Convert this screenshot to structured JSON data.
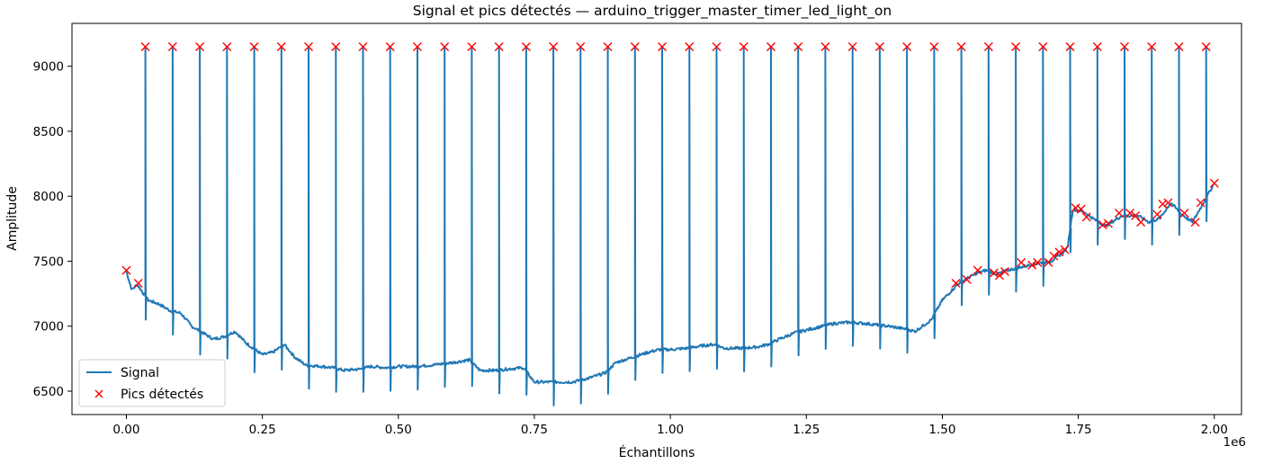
{
  "chart_data": {
    "type": "line",
    "title": "Signal et pics détectés — arduino_trigger_master_timer_led_light_on",
    "xlabel": "Échantillons",
    "ylabel": "Amplitude",
    "x_offset_label": "1e6",
    "xlim": [
      -0.1,
      2.05
    ],
    "ylim": [
      6320,
      9330
    ],
    "x_scale": 1000000,
    "x_ticks": [
      0.0,
      0.25,
      0.5,
      0.75,
      1.0,
      1.25,
      1.5,
      1.75,
      2.0
    ],
    "x_tick_labels": [
      "0.00",
      "0.25",
      "0.50",
      "0.75",
      "1.00",
      "1.25",
      "1.50",
      "1.75",
      "2.00"
    ],
    "y_ticks": [
      6500,
      7000,
      7500,
      8000,
      8500,
      9000
    ],
    "y_tick_labels": [
      "6500",
      "7000",
      "7500",
      "8000",
      "8500",
      "9000"
    ],
    "grid": false,
    "legend": {
      "position": "lower-left",
      "entries": [
        "Signal",
        "Pics détectés"
      ]
    },
    "series": [
      {
        "name": "Signal",
        "kind": "line",
        "color": "#1f77b4",
        "baseline": [
          [
            0.0,
            7420
          ],
          [
            0.01,
            7280
          ],
          [
            0.02,
            7320
          ],
          [
            0.04,
            7200
          ],
          [
            0.06,
            7170
          ],
          [
            0.08,
            7120
          ],
          [
            0.1,
            7100
          ],
          [
            0.12,
            7000
          ],
          [
            0.14,
            6950
          ],
          [
            0.16,
            6900
          ],
          [
            0.18,
            6920
          ],
          [
            0.2,
            6960
          ],
          [
            0.22,
            6870
          ],
          [
            0.25,
            6780
          ],
          [
            0.27,
            6800
          ],
          [
            0.29,
            6860
          ],
          [
            0.31,
            6760
          ],
          [
            0.33,
            6700
          ],
          [
            0.36,
            6690
          ],
          [
            0.38,
            6680
          ],
          [
            0.4,
            6660
          ],
          [
            0.43,
            6670
          ],
          [
            0.45,
            6690
          ],
          [
            0.48,
            6680
          ],
          [
            0.5,
            6690
          ],
          [
            0.53,
            6690
          ],
          [
            0.56,
            6700
          ],
          [
            0.58,
            6710
          ],
          [
            0.6,
            6720
          ],
          [
            0.63,
            6740
          ],
          [
            0.65,
            6660
          ],
          [
            0.68,
            6660
          ],
          [
            0.7,
            6670
          ],
          [
            0.73,
            6680
          ],
          [
            0.75,
            6570
          ],
          [
            0.78,
            6570
          ],
          [
            0.82,
            6570
          ],
          [
            0.85,
            6600
          ],
          [
            0.88,
            6640
          ],
          [
            0.9,
            6720
          ],
          [
            0.93,
            6760
          ],
          [
            0.96,
            6800
          ],
          [
            0.98,
            6820
          ],
          [
            1.0,
            6820
          ],
          [
            1.03,
            6830
          ],
          [
            1.06,
            6850
          ],
          [
            1.08,
            6860
          ],
          [
            1.1,
            6830
          ],
          [
            1.13,
            6830
          ],
          [
            1.16,
            6840
          ],
          [
            1.18,
            6860
          ],
          [
            1.2,
            6900
          ],
          [
            1.23,
            6950
          ],
          [
            1.26,
            6980
          ],
          [
            1.28,
            7000
          ],
          [
            1.3,
            7020
          ],
          [
            1.33,
            7030
          ],
          [
            1.36,
            7020
          ],
          [
            1.38,
            7010
          ],
          [
            1.4,
            7000
          ],
          [
            1.43,
            6980
          ],
          [
            1.45,
            6960
          ],
          [
            1.48,
            7050
          ],
          [
            1.5,
            7200
          ],
          [
            1.53,
            7330
          ],
          [
            1.56,
            7400
          ],
          [
            1.58,
            7430
          ],
          [
            1.6,
            7400
          ],
          [
            1.62,
            7430
          ],
          [
            1.65,
            7460
          ],
          [
            1.67,
            7480
          ],
          [
            1.7,
            7500
          ],
          [
            1.72,
            7560
          ],
          [
            1.73,
            7600
          ],
          [
            1.74,
            7900
          ],
          [
            1.76,
            7880
          ],
          [
            1.78,
            7820
          ],
          [
            1.8,
            7770
          ],
          [
            1.83,
            7850
          ],
          [
            1.86,
            7850
          ],
          [
            1.88,
            7800
          ],
          [
            1.9,
            7830
          ],
          [
            1.92,
            7950
          ],
          [
            1.94,
            7860
          ],
          [
            1.96,
            7800
          ],
          [
            1.98,
            7950
          ],
          [
            2.0,
            8100
          ]
        ],
        "spikes": {
          "peak": 9150,
          "dip_depth": 180,
          "x": [
            0.035,
            0.085,
            0.135,
            0.185,
            0.235,
            0.285,
            0.335,
            0.385,
            0.435,
            0.485,
            0.535,
            0.585,
            0.635,
            0.685,
            0.735,
            0.785,
            0.835,
            0.885,
            0.935,
            0.985,
            1.035,
            1.085,
            1.135,
            1.185,
            1.235,
            1.285,
            1.335,
            1.385,
            1.435,
            1.485,
            1.535,
            1.585,
            1.635,
            1.685,
            1.735,
            1.785,
            1.835,
            1.885,
            1.935,
            1.985
          ]
        }
      },
      {
        "name": "Pics détectés",
        "kind": "scatter",
        "marker": "x",
        "color": "#ff0000",
        "points": [
          [
            0.035,
            9150
          ],
          [
            0.085,
            9150
          ],
          [
            0.135,
            9150
          ],
          [
            0.185,
            9150
          ],
          [
            0.235,
            9150
          ],
          [
            0.285,
            9150
          ],
          [
            0.335,
            9150
          ],
          [
            0.385,
            9150
          ],
          [
            0.435,
            9150
          ],
          [
            0.485,
            9150
          ],
          [
            0.535,
            9150
          ],
          [
            0.585,
            9150
          ],
          [
            0.635,
            9150
          ],
          [
            0.685,
            9150
          ],
          [
            0.735,
            9150
          ],
          [
            0.785,
            9150
          ],
          [
            0.835,
            9150
          ],
          [
            0.885,
            9150
          ],
          [
            0.935,
            9150
          ],
          [
            0.985,
            9150
          ],
          [
            1.035,
            9150
          ],
          [
            1.085,
            9150
          ],
          [
            1.135,
            9150
          ],
          [
            1.185,
            9150
          ],
          [
            1.235,
            9150
          ],
          [
            1.285,
            9150
          ],
          [
            1.335,
            9150
          ],
          [
            1.385,
            9150
          ],
          [
            1.435,
            9150
          ],
          [
            1.485,
            9150
          ],
          [
            1.535,
            9150
          ],
          [
            1.585,
            9150
          ],
          [
            1.635,
            9150
          ],
          [
            1.685,
            9150
          ],
          [
            1.735,
            9150
          ],
          [
            1.785,
            9150
          ],
          [
            1.835,
            9150
          ],
          [
            1.885,
            9150
          ],
          [
            1.935,
            9150
          ],
          [
            1.985,
            9150
          ],
          [
            0.0,
            7430
          ],
          [
            0.022,
            7330
          ],
          [
            1.525,
            7330
          ],
          [
            1.545,
            7360
          ],
          [
            1.565,
            7430
          ],
          [
            1.595,
            7410
          ],
          [
            1.605,
            7390
          ],
          [
            1.615,
            7420
          ],
          [
            1.645,
            7490
          ],
          [
            1.665,
            7470
          ],
          [
            1.675,
            7490
          ],
          [
            1.695,
            7490
          ],
          [
            1.705,
            7540
          ],
          [
            1.715,
            7570
          ],
          [
            1.725,
            7590
          ],
          [
            1.745,
            7910
          ],
          [
            1.755,
            7900
          ],
          [
            1.765,
            7840
          ],
          [
            1.795,
            7780
          ],
          [
            1.805,
            7790
          ],
          [
            1.825,
            7870
          ],
          [
            1.845,
            7870
          ],
          [
            1.855,
            7850
          ],
          [
            1.865,
            7800
          ],
          [
            1.895,
            7860
          ],
          [
            1.905,
            7940
          ],
          [
            1.915,
            7950
          ],
          [
            1.945,
            7870
          ],
          [
            1.965,
            7800
          ],
          [
            1.975,
            7950
          ],
          [
            2.0,
            8100
          ]
        ]
      }
    ]
  }
}
